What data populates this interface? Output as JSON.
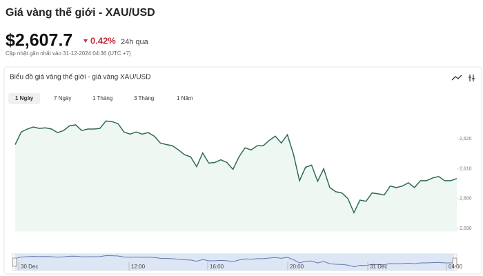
{
  "header": {
    "title": "Giá vàng thế giới - XAU/USD",
    "price": "$2,607.7",
    "change": "0.42%",
    "period": "24h qua",
    "updated": "Cập nhật gần nhất vào 31-12-2024 04:36 (UTC +7)"
  },
  "card": {
    "title": "Biểu đồ giá vàng thế giới - giá vàng XAU/USD",
    "tabs": [
      "1 Ngày",
      "7 Ngày",
      "1 Tháng",
      "3 Tháng",
      "1 Năm"
    ]
  },
  "chart_data": {
    "type": "line",
    "color": "#2f6b52",
    "values": [
      2618.1,
      2622.3,
      2623.3,
      2624.0,
      2623.5,
      2623.7,
      2623.3,
      2622.1,
      2622.8,
      2624.4,
      2624.7,
      2622.8,
      2623.3,
      2623.3,
      2623.5,
      2626.0,
      2625.8,
      2625.1,
      2622.3,
      2621.6,
      2622.3,
      2621.6,
      2622.1,
      2620.9,
      2618.6,
      2618.1,
      2617.7,
      2616.3,
      2614.7,
      2614.0,
      2610.7,
      2615.3,
      2611.9,
      2612.1,
      2613.0,
      2612.1,
      2609.8,
      2614.0,
      2617.0,
      2616.3,
      2617.7,
      2617.7,
      2619.5,
      2620.9,
      2618.6,
      2621.4,
      2614.9,
      2606.0,
      2610.5,
      2611.2,
      2605.8,
      2610.0,
      2603.7,
      2602.3,
      2601.9,
      2600.0,
      2595.3,
      2599.5,
      2599.1,
      2601.9,
      2601.6,
      2601.2,
      2604.2,
      2603.7,
      2604.2,
      2605.3,
      2603.7,
      2606.0,
      2606.0,
      2606.9,
      2607.4,
      2606.0,
      2606.0,
      2606.7
    ],
    "ylim": [
      2589,
      2627
    ],
    "yticks": [
      {
        "value": 2590,
        "label": "2,590"
      },
      {
        "value": 2600,
        "label": "2,600"
      },
      {
        "value": 2610,
        "label": "2,610"
      },
      {
        "value": 2620,
        "label": "2,620"
      }
    ],
    "navigator_labels": [
      "30 Dec",
      "12:00",
      "16:00",
      "20:00",
      "31 Dec",
      "04:00"
    ]
  }
}
